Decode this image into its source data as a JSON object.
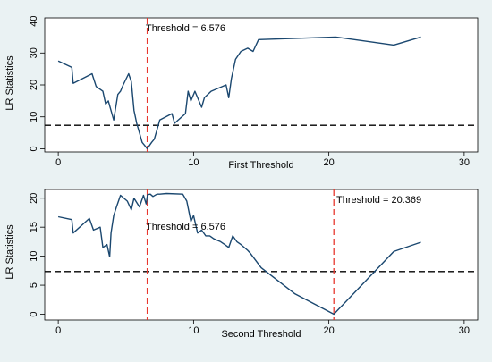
{
  "colors": {
    "page_bg": "#eaf2f3",
    "plot_bg": "#ffffff",
    "line": "#1a476f",
    "threshold": "#e8382e",
    "critical": "#000000"
  },
  "chart_data": [
    {
      "type": "line",
      "xlabel": "First Threshold",
      "ylabel": "LR Statistics",
      "xlim": [
        -1,
        31
      ],
      "ylim": [
        -1,
        41
      ],
      "xticks": [
        0,
        10,
        20,
        30
      ],
      "yticks": [
        0,
        10,
        20,
        30,
        40
      ],
      "grid": false,
      "critical_value": 7.35,
      "threshold_line": {
        "x": 6.576,
        "label": "Threshold = 6.576"
      },
      "series": [
        {
          "x": [
            0,
            1,
            1.1,
            2.5,
            2.8,
            3.3,
            3.5,
            3.7,
            4.1,
            4.4,
            4.6,
            4.8,
            5.2,
            5.4,
            5.5,
            5.6,
            5.8,
            6.0,
            6.2,
            6.4,
            6.576,
            6.9,
            7.1,
            7.5,
            8.4,
            8.6,
            9.4,
            9.6,
            9.8,
            10.1,
            10.6,
            10.8,
            11.3,
            12.4,
            12.6,
            12.8,
            13.1,
            13.5,
            14.0,
            14.4,
            14.8,
            20.5,
            24.8,
            26.8
          ],
          "y": [
            27.5,
            25.5,
            20.5,
            23.5,
            19.5,
            18.0,
            14.0,
            15.0,
            9.0,
            17.0,
            18.0,
            20.0,
            23.5,
            21.0,
            16.5,
            12.0,
            8.0,
            5.0,
            2.0,
            1.0,
            0.0,
            2.0,
            3.0,
            9.0,
            11.0,
            8.0,
            11.0,
            18.0,
            15.0,
            18.0,
            13.0,
            16.0,
            18.0,
            20.0,
            16.0,
            22.0,
            28.0,
            30.5,
            31.5,
            30.5,
            34.2,
            35.0,
            32.5,
            35.0
          ]
        }
      ]
    },
    {
      "type": "line",
      "xlabel": "Second Threshold",
      "ylabel": "LR Statistics",
      "xlim": [
        -1,
        31
      ],
      "ylim": [
        -1,
        21.5
      ],
      "xticks": [
        0,
        10,
        20,
        30
      ],
      "yticks": [
        0,
        5,
        10,
        15,
        20
      ],
      "grid": false,
      "critical_value": 7.35,
      "threshold_lines": [
        {
          "x": 6.576,
          "label": "Threshold = 6.576"
        },
        {
          "x": 20.369,
          "label": "Threshold = 20.369"
        }
      ],
      "series": [
        {
          "x": [
            0,
            1,
            1.1,
            2.3,
            2.6,
            3.1,
            3.3,
            3.6,
            3.8,
            3.9,
            4.1,
            4.3,
            4.6,
            5.1,
            5.4,
            5.6,
            6.0,
            6.3,
            6.5,
            6.6,
            6.8,
            7.0,
            7.3,
            7.5,
            8.0,
            9.2,
            9.5,
            9.8,
            10.0,
            10.3,
            10.6,
            10.9,
            11.2,
            11.5,
            12.0,
            12.3,
            12.6,
            12.9,
            13.2,
            13.5,
            14.0,
            14.2,
            15.0,
            17.5,
            20.369,
            24.8,
            26.8
          ],
          "y": [
            16.8,
            16.3,
            14.0,
            16.5,
            14.5,
            15.0,
            11.5,
            12.0,
            9.9,
            14.0,
            17.0,
            18.5,
            20.5,
            19.5,
            18.0,
            20.0,
            18.5,
            20.5,
            19.0,
            20.6,
            20.7,
            20.3,
            20.7,
            20.7,
            20.8,
            20.7,
            19.5,
            16.0,
            17.0,
            14.0,
            14.5,
            13.5,
            13.5,
            13.0,
            12.5,
            12.0,
            11.5,
            13.5,
            12.5,
            12.0,
            11.0,
            10.5,
            8.0,
            3.5,
            0.0,
            10.8,
            12.4
          ]
        }
      ]
    }
  ]
}
